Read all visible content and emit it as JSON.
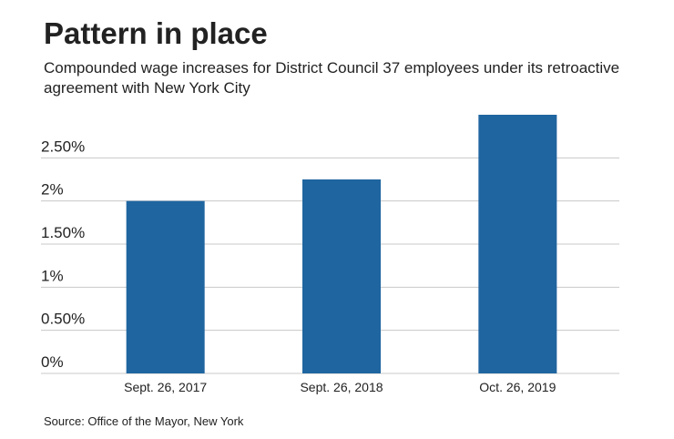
{
  "chart_data": {
    "type": "bar",
    "title": "Pattern in place",
    "subtitle": "Compounded wage increases for District Council 37 employees under its retroactive agreement with New York City",
    "source": "Source: Office of the Mayor, New York",
    "categories": [
      "Sept. 26, 2017",
      "Sept. 26, 2018",
      "Oct. 26, 2019"
    ],
    "values": [
      2,
      2.25,
      3
    ],
    "color": "#1f65a0",
    "ylim": [
      0,
      3
    ],
    "yticks": [
      {
        "value": 0,
        "label": "0%"
      },
      {
        "value": 0.5,
        "label": "0.50%"
      },
      {
        "value": 1,
        "label": "1%"
      },
      {
        "value": 1.5,
        "label": "1.50%"
      },
      {
        "value": 2,
        "label": "2%"
      },
      {
        "value": 2.5,
        "label": "2.50%"
      }
    ],
    "grid": true
  }
}
